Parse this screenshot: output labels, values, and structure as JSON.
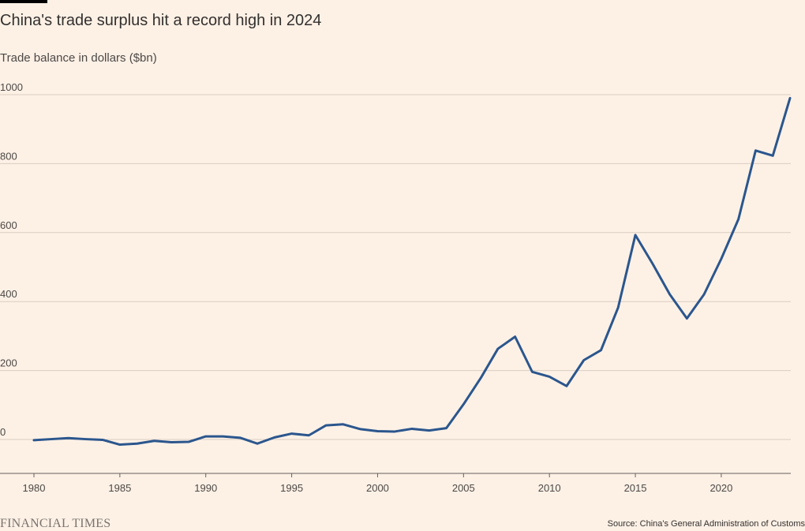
{
  "header": {
    "title": "China's trade surplus hit a record high in 2024",
    "subtitle": "Trade balance in dollars ($bn)"
  },
  "footer": {
    "logo_text": "FINANCIAL TIMES",
    "source": "Source: China's General Administration of Customs"
  },
  "colors": {
    "line": "#2b568d",
    "gridline": "#d9cdc2",
    "background": "#fdf1e6"
  },
  "chart_data": {
    "type": "line",
    "title": "China's trade surplus hit a record high in 2024",
    "ylabel": "Trade balance in dollars ($bn)",
    "xlabel": "",
    "xlim": [
      1980,
      2024
    ],
    "ylim": [
      -100,
      1000
    ],
    "x_ticks": [
      1980,
      1985,
      1990,
      1995,
      2000,
      2005,
      2010,
      2015,
      2020
    ],
    "y_ticks": [
      0,
      200,
      400,
      600,
      800,
      1000
    ],
    "grid": true,
    "series": [
      {
        "x": [
          1980,
          1981,
          1982,
          1983,
          1984,
          1985,
          1986,
          1987,
          1988,
          1989,
          1990,
          1991,
          1992,
          1993,
          1994,
          1995,
          1996,
          1997,
          1998,
          1999,
          2000,
          2001,
          2002,
          2003,
          2004,
          2005,
          2006,
          2007,
          2008,
          2009,
          2010,
          2011,
          2012,
          2013,
          2014,
          2015,
          2016,
          2017,
          2018,
          2019,
          2020,
          2021,
          2022,
          2023,
          2024
        ],
        "values": [
          -2,
          1,
          4,
          1,
          -1,
          -15,
          -12,
          -4,
          -8,
          -7,
          9,
          9,
          5,
          -12,
          6,
          17,
          12,
          41,
          44,
          30,
          24,
          23,
          31,
          26,
          33,
          102,
          178,
          263,
          298,
          196,
          182,
          155,
          230,
          259,
          383,
          593,
          510,
          421,
          351,
          421,
          524,
          639,
          838,
          823,
          990
        ]
      }
    ]
  }
}
